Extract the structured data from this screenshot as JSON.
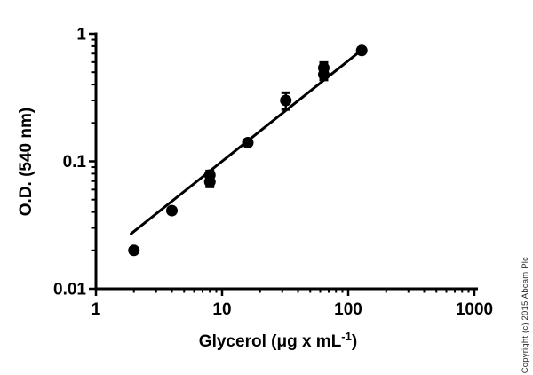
{
  "figure": {
    "background": "#ffffff",
    "copyright": "Copyright (c) 2015 Abcam Plc"
  },
  "chart_data": {
    "type": "scatter",
    "title": "",
    "x_scale": "log",
    "y_scale": "log",
    "xlabel": "Glycerol (μg x mL-1)",
    "xlabel_parts": {
      "main": "Glycerol (μg x mL",
      "sup": "-1",
      "close": ")"
    },
    "ylabel": "O.D. (540 nm)",
    "xlim": [
      1,
      1000
    ],
    "ylim": [
      0.01,
      1
    ],
    "x_ticks": [
      1,
      10,
      100,
      1000
    ],
    "x_tick_labels": [
      "1",
      "10",
      "100",
      "1000"
    ],
    "y_ticks": [
      1,
      0.1,
      0.01
    ],
    "y_tick_labels": [
      "1",
      "0.1",
      "0.01"
    ],
    "grid": false,
    "legend": false,
    "marker_color": "#000000",
    "line_color": "#000000",
    "points": [
      {
        "x": 2,
        "y": 0.02,
        "yerr": 0
      },
      {
        "x": 4,
        "y": 0.041,
        "yerr": 0
      },
      {
        "x": 8,
        "y": 0.078,
        "yerr": 0.006
      },
      {
        "x": 8,
        "y": 0.069,
        "yerr": 0.006
      },
      {
        "x": 16,
        "y": 0.14,
        "yerr": 0
      },
      {
        "x": 32,
        "y": 0.3,
        "yerr": 0.045
      },
      {
        "x": 64,
        "y": 0.54,
        "yerr": 0.055
      },
      {
        "x": 64,
        "y": 0.48,
        "yerr": 0.045
      },
      {
        "x": 128,
        "y": 0.74,
        "yerr": 0
      }
    ],
    "fit_line": {
      "x1": 1.9,
      "y1": 0.027,
      "x2": 118,
      "y2": 0.7
    }
  }
}
